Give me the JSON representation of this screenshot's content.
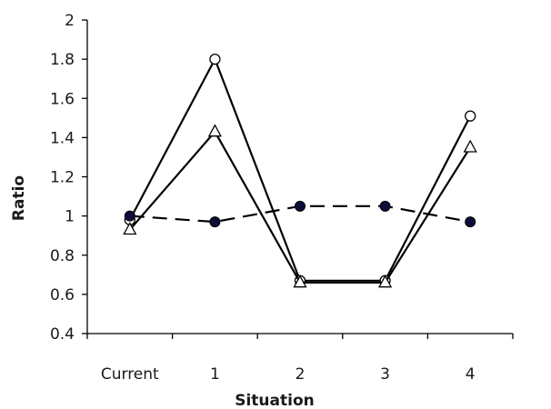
{
  "chart_data": {
    "type": "line",
    "title": "",
    "xlabel": "Situation",
    "ylabel": "Ratio",
    "categories": [
      "Current",
      "1",
      "2",
      "3",
      "4"
    ],
    "ylim": [
      0.4,
      2
    ],
    "yticks": [
      "0.4",
      "0.6",
      "0.8",
      "1",
      "1.2",
      "1.4",
      "1.6",
      "1.8",
      "2"
    ],
    "grid": false,
    "legend": "none",
    "series": [
      {
        "marker": "open-circle",
        "line": "solid",
        "color": "#000000",
        "values": [
          0.98,
          1.8,
          0.67,
          0.67,
          1.51
        ]
      },
      {
        "marker": "open-triangle",
        "line": "solid",
        "color": "#000000",
        "values": [
          0.93,
          1.43,
          0.66,
          0.66,
          1.35
        ]
      },
      {
        "marker": "filled-circle",
        "line": "dashed",
        "color": "#0d0d3a",
        "values": [
          1.0,
          0.97,
          1.05,
          1.05,
          0.97
        ]
      }
    ]
  }
}
